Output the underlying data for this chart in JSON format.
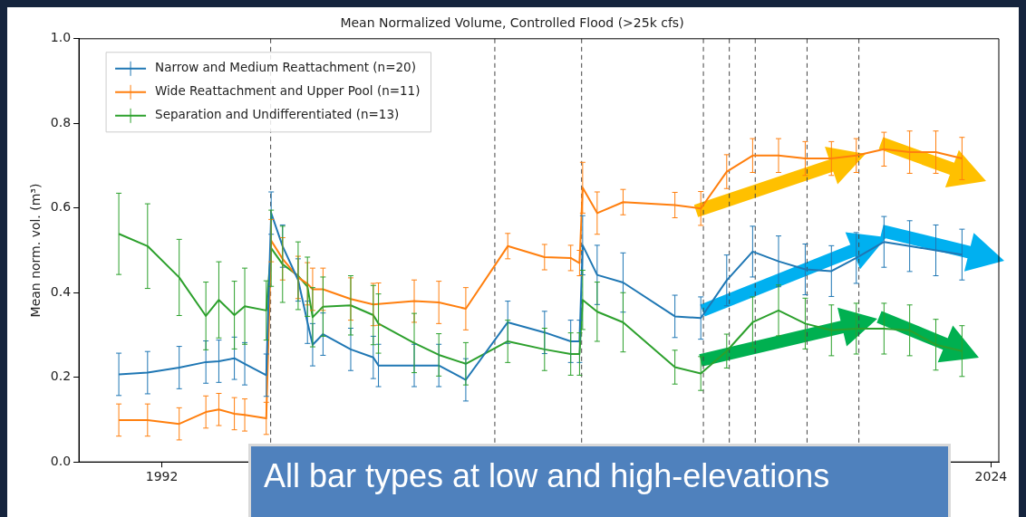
{
  "chart_data": {
    "type": "line",
    "title": "Mean Normalized Volume, Controlled Flood (>25k cfs)",
    "ylabel": "Mean norm. vol. (m³)",
    "x": [
      1990.34,
      1991.45,
      1992.67,
      1993.7,
      1994.2,
      1994.8,
      1995.2,
      1996.03,
      1996.22,
      1996.66,
      1997.26,
      1997.62,
      1997.82,
      1998.22,
      1999.29,
      2000.16,
      2000.36,
      2001.74,
      2002.69,
      2003.73,
      2005.35,
      2006.77,
      2007.78,
      2008.12,
      2008.24,
      2008.8,
      2009.8,
      2011.8,
      2012.8,
      2013.8,
      2014.8,
      2015.8,
      2016.83,
      2017.84,
      2018.8,
      2019.87,
      2020.86,
      2021.87,
      2022.88
    ],
    "series": [
      {
        "name": "Narrow and Medium Reattachment (n=20)",
        "color": "#1f77b4",
        "values": [
          0.207,
          0.211,
          0.223,
          0.236,
          0.238,
          0.245,
          0.232,
          0.205,
          0.588,
          0.51,
          0.43,
          0.33,
          0.277,
          0.302,
          0.266,
          0.247,
          0.228,
          0.228,
          0.228,
          0.194,
          0.33,
          0.306,
          0.285,
          0.285,
          0.512,
          0.442,
          0.424,
          0.344,
          0.34,
          0.429,
          0.497,
          0.474,
          0.455,
          0.451,
          0.482,
          0.52,
          0.51,
          0.5,
          0.49
        ],
        "errors": [
          0.05,
          0.05,
          0.05,
          0.05,
          0.05,
          0.05,
          0.05,
          0.05,
          0.05,
          0.05,
          0.05,
          0.05,
          0.05,
          0.05,
          0.05,
          0.05,
          0.05,
          0.05,
          0.05,
          0.05,
          0.05,
          0.05,
          0.05,
          0.05,
          0.07,
          0.07,
          0.07,
          0.05,
          0.05,
          0.06,
          0.06,
          0.06,
          0.06,
          0.06,
          0.06,
          0.06,
          0.06,
          0.06,
          0.06
        ]
      },
      {
        "name": "Wide Reattachment and Upper Pool (n=11)",
        "color": "#ff7f0e",
        "values": [
          0.099,
          0.099,
          0.09,
          0.118,
          0.124,
          0.114,
          0.111,
          0.103,
          0.523,
          0.48,
          0.436,
          0.421,
          0.408,
          0.408,
          0.385,
          0.372,
          0.373,
          0.38,
          0.377,
          0.362,
          0.51,
          0.484,
          0.482,
          0.47,
          0.648,
          0.588,
          0.614,
          0.607,
          0.599,
          0.686,
          0.724,
          0.724,
          0.717,
          0.717,
          0.724,
          0.739,
          0.732,
          0.732,
          0.717
        ],
        "errors": [
          0.038,
          0.038,
          0.038,
          0.038,
          0.038,
          0.038,
          0.038,
          0.038,
          0.05,
          0.05,
          0.05,
          0.05,
          0.05,
          0.05,
          0.05,
          0.05,
          0.05,
          0.05,
          0.05,
          0.05,
          0.03,
          0.03,
          0.03,
          0.03,
          0.06,
          0.05,
          0.03,
          0.03,
          0.04,
          0.04,
          0.04,
          0.04,
          0.04,
          0.04,
          0.04,
          0.04,
          0.05,
          0.05,
          0.05
        ]
      },
      {
        "name": "Separation and Undifferentiated (n=13)",
        "color": "#2ca02c",
        "values": [
          0.539,
          0.51,
          0.436,
          0.345,
          0.383,
          0.347,
          0.368,
          0.358,
          0.505,
          0.467,
          0.44,
          0.414,
          0.342,
          0.367,
          0.37,
          0.347,
          0.327,
          0.281,
          0.253,
          0.232,
          0.285,
          0.266,
          0.255,
          0.255,
          0.383,
          0.355,
          0.33,
          0.224,
          0.209,
          0.262,
          0.33,
          0.358,
          0.327,
          0.311,
          0.315,
          0.315,
          0.311,
          0.277,
          0.262
        ],
        "errors": [
          0.096,
          0.1,
          0.09,
          0.08,
          0.09,
          0.08,
          0.09,
          0.07,
          0.09,
          0.09,
          0.08,
          0.07,
          0.07,
          0.07,
          0.07,
          0.07,
          0.07,
          0.07,
          0.05,
          0.05,
          0.05,
          0.05,
          0.05,
          0.05,
          0.07,
          0.07,
          0.07,
          0.04,
          0.04,
          0.04,
          0.06,
          0.06,
          0.06,
          0.06,
          0.06,
          0.06,
          0.06,
          0.06,
          0.06
        ]
      }
    ],
    "xlim": [
      1988.8,
      2024.3
    ],
    "xticks": [
      1992,
      2024
    ],
    "ylim": [
      0,
      1
    ],
    "yticks": [
      {
        "value": 0,
        "label": "0.0"
      },
      {
        "value": 0.2,
        "label": "0.2"
      },
      {
        "value": 0.4,
        "label": "0.4"
      },
      {
        "value": 0.6,
        "label": "0.6"
      },
      {
        "value": 0.8,
        "label": "0.8"
      },
      {
        "value": 1,
        "label": "1.0"
      }
    ],
    "ref_lines": [
      {
        "axis": "x",
        "value": 1996.2,
        "line_style": "dashed",
        "color": "#444444"
      },
      {
        "axis": "x",
        "value": 2004.85,
        "line_style": "dashed",
        "color": "#444444"
      },
      {
        "axis": "x",
        "value": 2008.2,
        "line_style": "dashed",
        "color": "#444444"
      },
      {
        "axis": "x",
        "value": 2012.9,
        "line_style": "dashed",
        "color": "#444444"
      },
      {
        "axis": "x",
        "value": 2013.9,
        "line_style": "dashed",
        "color": "#444444"
      },
      {
        "axis": "x",
        "value": 2014.9,
        "line_style": "dashed",
        "color": "#444444"
      },
      {
        "axis": "x",
        "value": 2016.9,
        "line_style": "dashed",
        "color": "#444444"
      },
      {
        "axis": "x",
        "value": 2018.9,
        "line_style": "dashed",
        "color": "#444444"
      }
    ],
    "legend": "top left",
    "annotations": [
      "All bar types at low and high-elevations"
    ]
  }
}
